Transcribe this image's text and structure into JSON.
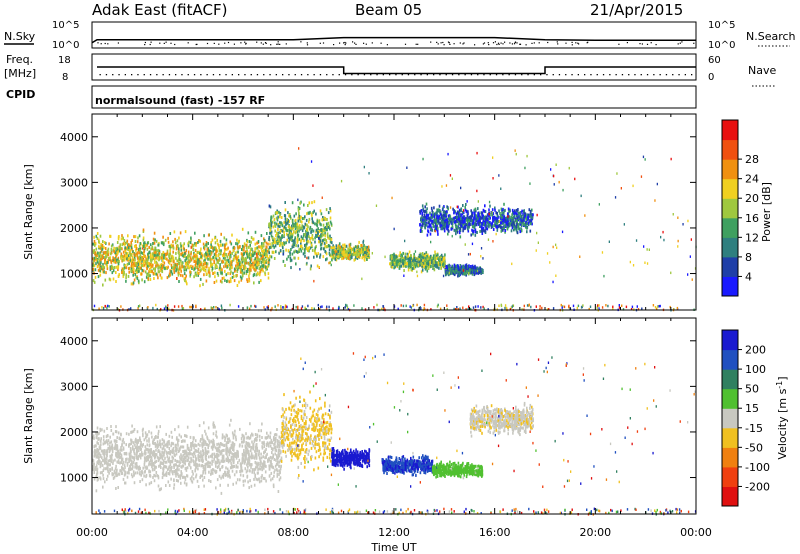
{
  "header": {
    "station": "Adak East (fitACF)",
    "beam": "Beam 05",
    "date": "21/Apr/2015"
  },
  "top_panels": {
    "nsky_label": "N.Sky",
    "nsky_ticks": [
      "10^5",
      "10^0"
    ],
    "nsearch_label": "N.Search",
    "nsearch_ticks": [
      "10^5",
      "10^0"
    ],
    "freq_label": "Freq.",
    "freq_unit": "[MHz]",
    "freq_ticks": [
      "18",
      "8"
    ],
    "nave_label": "Nave",
    "nave_ticks": [
      "60",
      "0"
    ],
    "cpid_label": "CPID",
    "cpid_text": "normalsound (fast) -157 RF"
  },
  "axes": {
    "ylabel": "Slant Range [km]",
    "yticks": [
      "1000",
      "2000",
      "3000",
      "4000"
    ],
    "xlabel": "Time UT",
    "xticks": [
      "00:00",
      "04:00",
      "08:00",
      "12:00",
      "16:00",
      "20:00",
      "00:00"
    ]
  },
  "power_colorbar": {
    "label": "Power [dB]",
    "ticks": [
      "4",
      "8",
      "12",
      "16",
      "20",
      "24",
      "28"
    ],
    "colors": [
      "#1a1aff",
      "#1f3fa8",
      "#2f7f7f",
      "#3fa060",
      "#9fc83f",
      "#f0d020",
      "#f09010",
      "#f05010",
      "#e81010"
    ]
  },
  "velocity_colorbar": {
    "label": "Velocity [m s",
    "label_sup": "-1",
    "label_end": "]",
    "ticks": [
      "200",
      "100",
      "50",
      "15",
      "-15",
      "-50",
      "-100",
      "-200"
    ],
    "colors": [
      "#1a1ad0",
      "#2050c0",
      "#308060",
      "#50c030",
      "#c8c8c0",
      "#f0c020",
      "#f08010",
      "#f04010",
      "#e01010"
    ]
  },
  "chart_data": [
    {
      "type": "line",
      "title": "N.Sky / N.Search",
      "x_unit": "hours UT",
      "xlim": [
        0,
        24
      ],
      "series": [
        {
          "name": "N.Sky",
          "x": [
            0,
            0.2,
            8,
            10,
            12,
            14,
            16,
            18,
            20,
            22,
            24
          ],
          "y": [
            1.0,
            1.6,
            1.6,
            2.0,
            2.0,
            2.0,
            2.0,
            1.6,
            1.5,
            1.5,
            1.5
          ]
        }
      ]
    },
    {
      "type": "line",
      "title": "Freq. / Nave",
      "series": [
        {
          "name": "Freq.",
          "x": [
            0.2,
            10.0,
            10.0,
            18.0,
            18.0,
            24
          ],
          "y": [
            13,
            13,
            10.5,
            10.5,
            13,
            13
          ]
        }
      ]
    },
    {
      "type": "heatmap",
      "title": "Power",
      "xlabel": "Time UT",
      "ylabel": "Slant Range [km]",
      "ylim": [
        200,
        4500
      ],
      "xlim": [
        0,
        24
      ],
      "colorbar": "Power [dB]",
      "zlim": [
        0,
        32
      ],
      "regions": [
        {
          "t0": 0.0,
          "t1": 7.0,
          "r_center": 1350,
          "r_width": 700,
          "value": 18
        },
        {
          "t0": 7.0,
          "t1": 9.5,
          "r_center": 1900,
          "r_width": 900,
          "value": 14
        },
        {
          "t0": 9.5,
          "t1": 11.0,
          "r_center": 1500,
          "r_width": 250,
          "value": 16
        },
        {
          "t0": 11.8,
          "t1": 14.0,
          "r_center": 1300,
          "r_width": 250,
          "value": 14
        },
        {
          "t0": 14.0,
          "t1": 15.5,
          "r_center": 1100,
          "r_width": 150,
          "value": 8
        },
        {
          "t0": 13.0,
          "t1": 17.5,
          "r_center": 2200,
          "r_width": 400,
          "value": 6
        }
      ]
    },
    {
      "type": "heatmap",
      "title": "Velocity",
      "xlabel": "Time UT",
      "ylabel": "Slant Range [km]",
      "ylim": [
        200,
        4500
      ],
      "xlim": [
        0,
        24
      ],
      "colorbar": "Velocity [m s-1]",
      "zlim": [
        -200,
        200
      ],
      "regions": [
        {
          "t0": 0.0,
          "t1": 7.5,
          "r_center": 1500,
          "r_width": 900,
          "value": 0
        },
        {
          "t0": 7.5,
          "t1": 9.5,
          "r_center": 2000,
          "r_width": 1000,
          "value": -30
        },
        {
          "t0": 9.5,
          "t1": 11.0,
          "r_center": 1450,
          "r_width": 250,
          "value": 200
        },
        {
          "t0": 11.5,
          "t1": 13.5,
          "r_center": 1300,
          "r_width": 250,
          "value": 150
        },
        {
          "t0": 13.5,
          "t1": 15.5,
          "r_center": 1200,
          "r_width": 200,
          "value": 40
        },
        {
          "t0": 15.0,
          "t1": 17.5,
          "r_center": 2300,
          "r_width": 400,
          "value": -10
        }
      ]
    }
  ]
}
